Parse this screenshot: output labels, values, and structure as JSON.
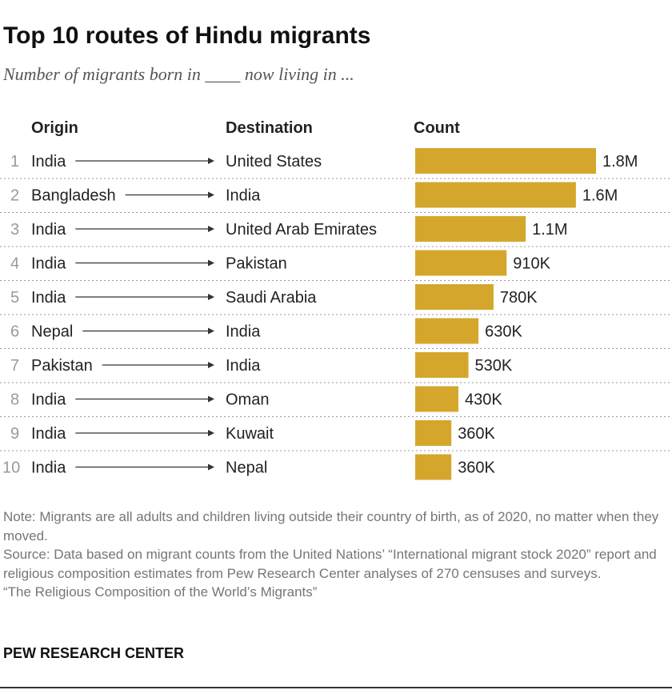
{
  "title": "Top 10 routes of Hindu migrants",
  "subtitle": "Number of migrants born in ____ now living in ...",
  "columns": {
    "origin": "Origin",
    "destination": "Destination",
    "count": "Count"
  },
  "chart_data": {
    "type": "bar",
    "orientation": "horizontal",
    "bar_color": "#d4a72c",
    "rows": [
      {
        "rank": "1",
        "origin": "India",
        "destination": "United States",
        "value": 1800000,
        "label": "1.8M"
      },
      {
        "rank": "2",
        "origin": "Bangladesh",
        "destination": "India",
        "value": 1600000,
        "label": "1.6M"
      },
      {
        "rank": "3",
        "origin": "India",
        "destination": "United Arab Emirates",
        "value": 1100000,
        "label": "1.1M"
      },
      {
        "rank": "4",
        "origin": "India",
        "destination": "Pakistan",
        "value": 910000,
        "label": "910K"
      },
      {
        "rank": "5",
        "origin": "India",
        "destination": "Saudi Arabia",
        "value": 780000,
        "label": "780K"
      },
      {
        "rank": "6",
        "origin": "Nepal",
        "destination": "India",
        "value": 630000,
        "label": "630K"
      },
      {
        "rank": "7",
        "origin": "Pakistan",
        "destination": "India",
        "value": 530000,
        "label": "530K"
      },
      {
        "rank": "8",
        "origin": "India",
        "destination": "Oman",
        "value": 430000,
        "label": "430K"
      },
      {
        "rank": "9",
        "origin": "India",
        "destination": "Kuwait",
        "value": 360000,
        "label": "360K"
      },
      {
        "rank": "10",
        "origin": "India",
        "destination": "Nepal",
        "value": 360000,
        "label": "360K"
      }
    ]
  },
  "notes": {
    "note": "Note: Migrants are all adults and children living outside their country of birth, as of 2020, no matter when they moved.",
    "source": "Source: Data based on migrant counts from the United Nations’ “International migrant stock 2020” report and religious composition estimates from Pew Research Center analyses of 270 censuses and surveys.",
    "report": "“The Religious Composition of the World’s Migrants”"
  },
  "brand": "PEW RESEARCH CENTER"
}
